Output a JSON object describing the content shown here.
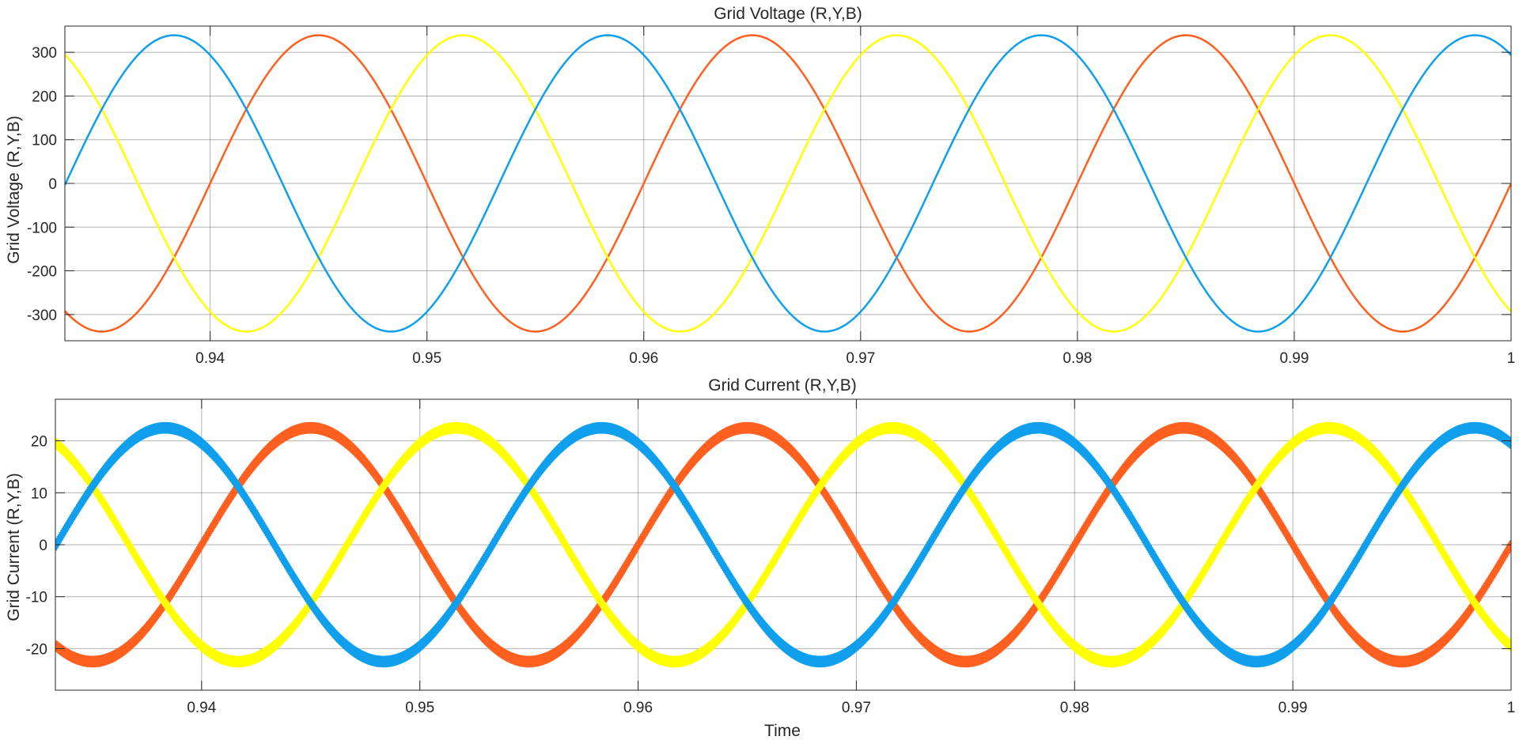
{
  "chart_data": [
    {
      "type": "line",
      "title": "Grid Voltage (R,Y,B)",
      "xlabel": "",
      "ylabel": "Grid Voltage (R,Y,B)",
      "xlim": [
        0.9333,
        1.0
      ],
      "ylim": [
        -360,
        360
      ],
      "xticks": [
        0.94,
        0.95,
        0.96,
        0.97,
        0.98,
        0.99,
        1.0
      ],
      "xtick_labels": [
        "0.94",
        "0.95",
        "0.96",
        "0.97",
        "0.98",
        "0.99",
        "1"
      ],
      "yticks": [
        300,
        200,
        100,
        0,
        -100,
        -200,
        -300
      ],
      "ytick_labels": [
        "300",
        "200",
        "100",
        "0",
        "-100",
        "-200",
        "-300"
      ],
      "grid": true,
      "legend": "none",
      "series": [
        {
          "color": "#ff5f1f",
          "waveform": "sine",
          "amplitude": 339,
          "frequency_hz": 50,
          "phase_deg": 0,
          "ripple": 0
        },
        {
          "color": "#ffff00",
          "waveform": "sine",
          "amplitude": 339,
          "frequency_hz": 50,
          "phase_deg": -120,
          "ripple": 0
        },
        {
          "color": "#0f9fec",
          "waveform": "sine",
          "amplitude": 339,
          "frequency_hz": 50,
          "phase_deg": 120,
          "ripple": 0
        }
      ]
    },
    {
      "type": "line",
      "title": "Grid Current (R,Y,B)",
      "xlabel": "Time",
      "ylabel": "Grid Current (R,Y,B)",
      "xlim": [
        0.9333,
        1.0
      ],
      "ylim": [
        -28,
        28
      ],
      "xticks": [
        0.94,
        0.95,
        0.96,
        0.97,
        0.98,
        0.99,
        1.0
      ],
      "xtick_labels": [
        "0.94",
        "0.95",
        "0.96",
        "0.97",
        "0.98",
        "0.99",
        "1"
      ],
      "yticks": [
        20,
        10,
        0,
        -10,
        -20
      ],
      "ytick_labels": [
        "20",
        "10",
        "0",
        "-10",
        "-20"
      ],
      "grid": true,
      "legend": "none",
      "series": [
        {
          "color": "#ff5f1f",
          "waveform": "sine",
          "amplitude": 22.5,
          "frequency_hz": 50,
          "phase_deg": 0,
          "ripple": 0.9
        },
        {
          "color": "#ffff00",
          "waveform": "sine",
          "amplitude": 22.5,
          "frequency_hz": 50,
          "phase_deg": -120,
          "ripple": 0.9
        },
        {
          "color": "#0f9fec",
          "waveform": "sine",
          "amplitude": 22.5,
          "frequency_hz": 50,
          "phase_deg": 120,
          "ripple": 0.9
        }
      ]
    }
  ]
}
